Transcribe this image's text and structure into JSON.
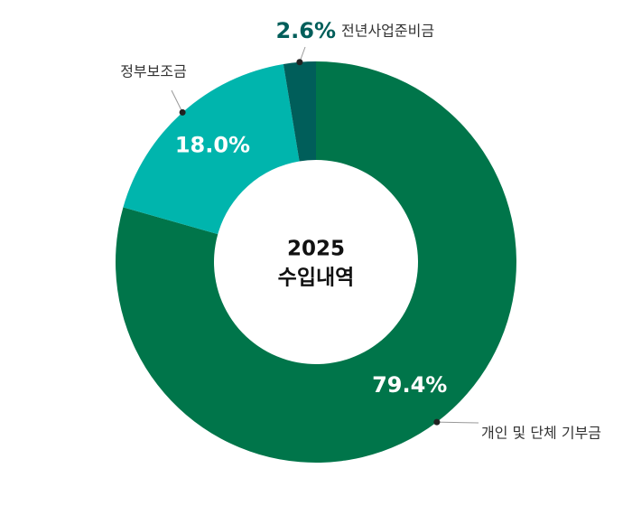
{
  "chart_data": {
    "type": "pie",
    "title_lines": [
      "2025",
      "수입내역"
    ],
    "categories": [
      "개인 및 단체 기부금",
      "정부보조금",
      "전년사업준비금"
    ],
    "values": [
      79.4,
      18.0,
      2.6
    ],
    "value_labels": [
      "79.4%",
      "18.0%",
      "2.6%"
    ],
    "colors": [
      "#00754a",
      "#00b5ad",
      "#005e5a"
    ]
  }
}
